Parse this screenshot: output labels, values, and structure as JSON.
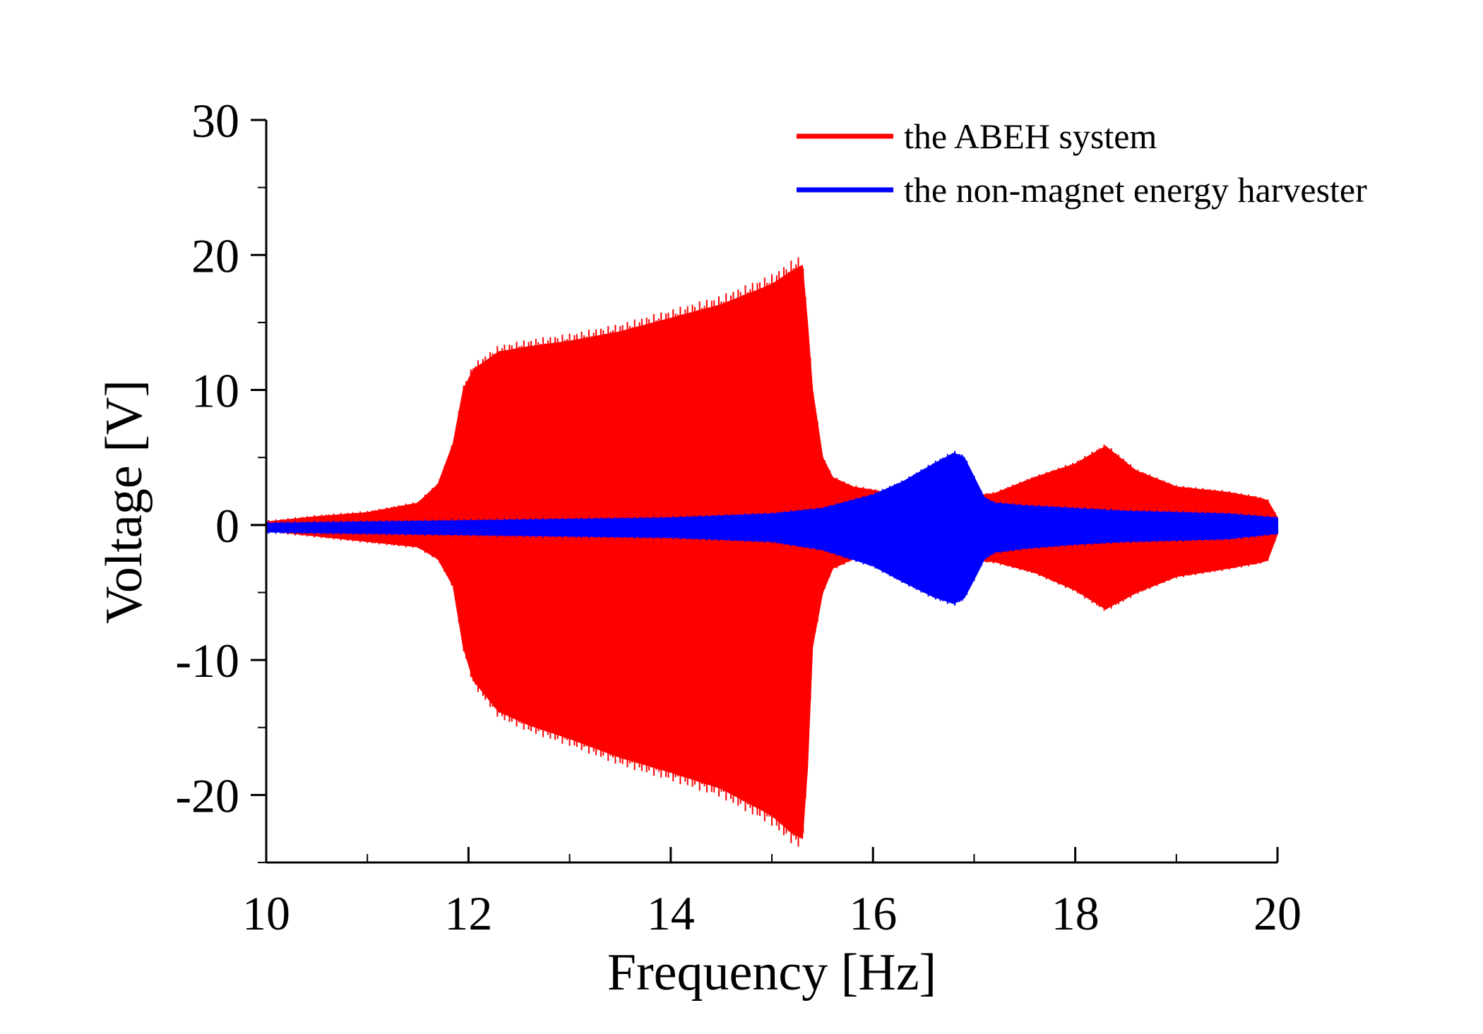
{
  "chart_data": {
    "type": "area",
    "title": "",
    "xlabel": "Frequency [Hz]",
    "ylabel": "Voltage [V]",
    "xlim": [
      10,
      20
    ],
    "ylim": [
      -25,
      30
    ],
    "xticks": [
      10,
      12,
      14,
      16,
      18,
      20
    ],
    "yticks": [
      -20,
      -10,
      0,
      10,
      20,
      30
    ],
    "xtick_labels": [
      "10",
      "12",
      "14",
      "16",
      "18",
      "20"
    ],
    "ytick_labels": [
      "-20",
      "-10",
      "0",
      "10",
      "20",
      "30"
    ],
    "legend_position": "top-right",
    "series": [
      {
        "name": "the ABEH system",
        "color": "#ff0000",
        "x": [
          10.0,
          10.5,
          11.0,
          11.5,
          11.7,
          11.85,
          11.95,
          12.05,
          12.3,
          12.6,
          13.0,
          13.5,
          14.0,
          14.5,
          15.0,
          15.2,
          15.3,
          15.35,
          15.4,
          15.5,
          15.6,
          15.8,
          16.2,
          16.8,
          17.2,
          17.6,
          18.0,
          18.3,
          18.6,
          19.0,
          19.5,
          19.8,
          19.9,
          20.0
        ],
        "upper": [
          0.2,
          0.6,
          0.9,
          1.6,
          3.0,
          6.0,
          10.0,
          11.5,
          12.8,
          13.2,
          13.6,
          14.3,
          15.3,
          16.3,
          17.8,
          18.8,
          19.2,
          15.0,
          10.0,
          5.0,
          3.5,
          2.8,
          2.3,
          2.0,
          2.3,
          3.5,
          4.5,
          5.8,
          4.0,
          2.8,
          2.4,
          2.0,
          1.8,
          0.5
        ],
        "lower": [
          -0.4,
          -0.8,
          -1.2,
          -1.6,
          -2.5,
          -4.5,
          -9.0,
          -11.5,
          -13.8,
          -14.8,
          -15.8,
          -17.2,
          -18.3,
          -19.5,
          -21.5,
          -22.8,
          -23.2,
          -18.0,
          -9.0,
          -5.0,
          -3.2,
          -2.5,
          -2.3,
          -2.5,
          -2.7,
          -3.5,
          -4.8,
          -6.2,
          -5.0,
          -3.8,
          -3.2,
          -2.8,
          -2.6,
          -0.6
        ]
      },
      {
        "name": "the non-magnet energy harvester",
        "color": "#0000ff",
        "x": [
          10.0,
          11.0,
          12.0,
          13.0,
          14.0,
          15.0,
          15.5,
          16.0,
          16.3,
          16.6,
          16.8,
          16.9,
          17.0,
          17.1,
          17.2,
          17.5,
          18.0,
          18.5,
          19.0,
          19.5,
          20.0
        ],
        "upper": [
          0.1,
          0.2,
          0.3,
          0.4,
          0.5,
          0.8,
          1.2,
          2.2,
          3.2,
          4.5,
          5.3,
          5.0,
          3.5,
          2.0,
          1.6,
          1.4,
          1.2,
          1.0,
          0.9,
          0.8,
          0.5
        ],
        "lower": [
          -0.5,
          -0.6,
          -0.7,
          -0.8,
          -0.9,
          -1.2,
          -1.8,
          -3.0,
          -4.2,
          -5.3,
          -5.8,
          -5.4,
          -4.0,
          -2.5,
          -2.0,
          -1.7,
          -1.4,
          -1.2,
          -1.1,
          -1.0,
          -0.6
        ]
      }
    ]
  }
}
